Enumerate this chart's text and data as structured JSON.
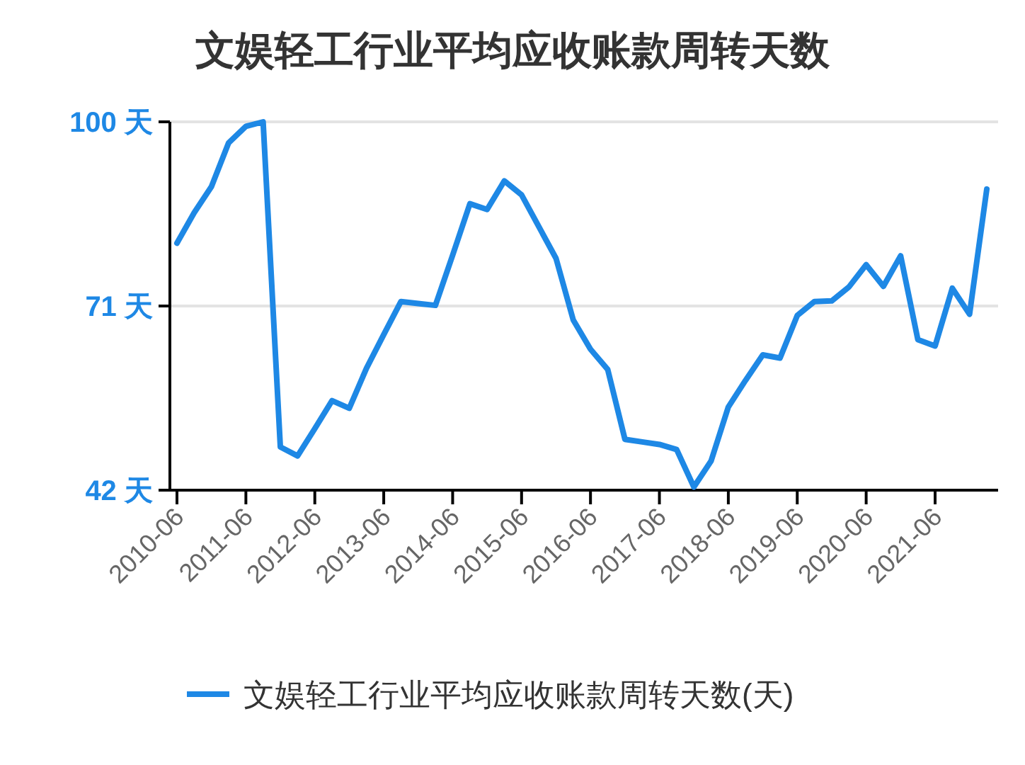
{
  "chart_data": {
    "type": "line",
    "title": "文娱轻工行业平均应收账款周转天数",
    "categories": [
      "2010-06",
      null,
      null,
      null,
      "2011-06",
      null,
      null,
      null,
      "2012-06",
      null,
      null,
      null,
      "2013-06",
      null,
      null,
      null,
      "2014-06",
      null,
      null,
      null,
      "2015-06",
      null,
      null,
      null,
      "2016-06",
      null,
      null,
      null,
      "2017-06",
      null,
      null,
      null,
      "2018-06",
      null,
      null,
      null,
      "2019-06",
      null,
      null,
      null,
      "2020-06",
      null,
      null,
      null,
      "2021-06",
      null,
      null,
      null
    ],
    "series": [
      {
        "name": "文娱轻工行业平均应收账款周转天数(天)",
        "color": "#1e88e5",
        "values": [
          80.9,
          85.7,
          89.8,
          96.7,
          99.3,
          100,
          48.8,
          47.4,
          51.7,
          56.1,
          54.9,
          61.2,
          66.5,
          71.7,
          71.4,
          71.1,
          79.0,
          87.1,
          86.2,
          90.7,
          88.5,
          83.5,
          78.5,
          68.8,
          64.2,
          61.0,
          50.0,
          49.6,
          49.2,
          48.4,
          42.5,
          46.6,
          55.1,
          59.3,
          63.3,
          62.8,
          69.5,
          71.7,
          71.8,
          74.0,
          77.5,
          74.1,
          78.9,
          65.7,
          64.7,
          73.8,
          69.7,
          89.4
        ]
      }
    ],
    "ylim": [
      42,
      100
    ],
    "yticks": [
      {
        "value": 42,
        "label": "42 天"
      },
      {
        "value": 71,
        "label": "71 天"
      },
      {
        "value": 100,
        "label": "100 天"
      }
    ],
    "grid": "y",
    "legend": "bottom",
    "marker": "none",
    "line_style": "solid"
  }
}
